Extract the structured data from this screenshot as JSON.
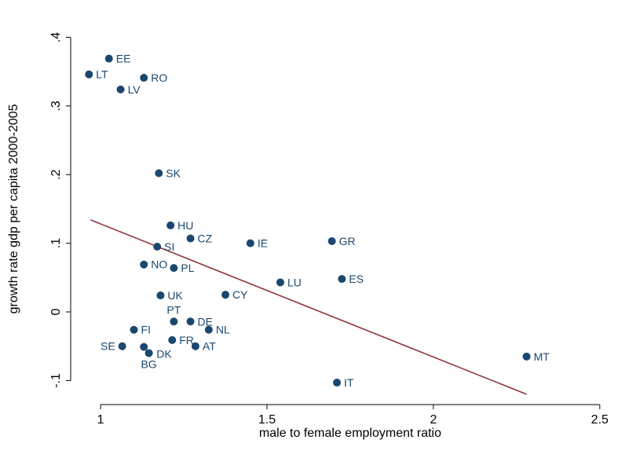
{
  "chart_data": {
    "type": "scatter",
    "xlabel": "male to female employment ratio",
    "ylabel": "growth rate gdp per capita 2000-2005",
    "xlim": [
      0.91,
      2.55
    ],
    "ylim": [
      -0.135,
      0.42
    ],
    "x_ticks": [
      {
        "value": 1,
        "label": "1"
      },
      {
        "value": 1.5,
        "label": "1.5"
      },
      {
        "value": 2,
        "label": "2"
      },
      {
        "value": 2.5,
        "label": "2.5"
      }
    ],
    "y_ticks": [
      {
        "value": -0.1,
        "label": "-.1"
      },
      {
        "value": 0,
        "label": "0"
      },
      {
        "value": 0.1,
        "label": ".1"
      },
      {
        "value": 0.2,
        "label": ".2"
      },
      {
        "value": 0.3,
        "label": ".3"
      },
      {
        "value": 0.4,
        "label": ".4"
      }
    ],
    "points": [
      {
        "label": "EE",
        "x": 1.025,
        "y": 0.369,
        "pos": "right"
      },
      {
        "label": "LT",
        "x": 0.965,
        "y": 0.346,
        "pos": "right"
      },
      {
        "label": "RO",
        "x": 1.13,
        "y": 0.341,
        "pos": "right"
      },
      {
        "label": "LV",
        "x": 1.06,
        "y": 0.324,
        "pos": "right"
      },
      {
        "label": "SK",
        "x": 1.175,
        "y": 0.202,
        "pos": "right"
      },
      {
        "label": "HU",
        "x": 1.21,
        "y": 0.126,
        "pos": "right"
      },
      {
        "label": "CZ",
        "x": 1.27,
        "y": 0.107,
        "pos": "right"
      },
      {
        "label": "IE",
        "x": 1.45,
        "y": 0.1,
        "pos": "right"
      },
      {
        "label": "GR",
        "x": 1.695,
        "y": 0.103,
        "pos": "right"
      },
      {
        "label": "SI",
        "x": 1.17,
        "y": 0.095,
        "pos": "right"
      },
      {
        "label": "NO",
        "x": 1.13,
        "y": 0.069,
        "pos": "right"
      },
      {
        "label": "PL",
        "x": 1.22,
        "y": 0.064,
        "pos": "right"
      },
      {
        "label": "ES",
        "x": 1.725,
        "y": 0.048,
        "pos": "right"
      },
      {
        "label": "LU",
        "x": 1.54,
        "y": 0.043,
        "pos": "right"
      },
      {
        "label": "UK",
        "x": 1.18,
        "y": 0.024,
        "pos": "right"
      },
      {
        "label": "CY",
        "x": 1.375,
        "y": 0.025,
        "pos": "right"
      },
      {
        "label": "PT",
        "x": 1.22,
        "y": -0.014,
        "pos": "above"
      },
      {
        "label": "DE",
        "x": 1.27,
        "y": -0.014,
        "pos": "right"
      },
      {
        "label": "FI",
        "x": 1.1,
        "y": -0.026,
        "pos": "right"
      },
      {
        "label": "NL",
        "x": 1.325,
        "y": -0.026,
        "pos": "right"
      },
      {
        "label": "FR",
        "x": 1.215,
        "y": -0.041,
        "pos": "right"
      },
      {
        "label": "SE",
        "x": 1.065,
        "y": -0.05,
        "pos": "left"
      },
      {
        "label": "AT",
        "x": 1.285,
        "y": -0.05,
        "pos": "right"
      },
      {
        "label": "DK",
        "x": 1.13,
        "y": -0.051,
        "pos": "below-right"
      },
      {
        "label": "BG",
        "x": 1.145,
        "y": -0.06,
        "pos": "below"
      },
      {
        "label": "MT",
        "x": 2.28,
        "y": -0.065,
        "pos": "right"
      },
      {
        "label": "IT",
        "x": 1.71,
        "y": -0.103,
        "pos": "right"
      }
    ],
    "fit_line": {
      "x": [
        0.97,
        2.28
      ],
      "y": [
        0.134,
        -0.12
      ]
    },
    "colors": {
      "marker": "#1a476f",
      "label": "#1a476f",
      "fit_line": "#90353b",
      "axis": "#000000"
    },
    "legend": "none",
    "grid": false
  }
}
